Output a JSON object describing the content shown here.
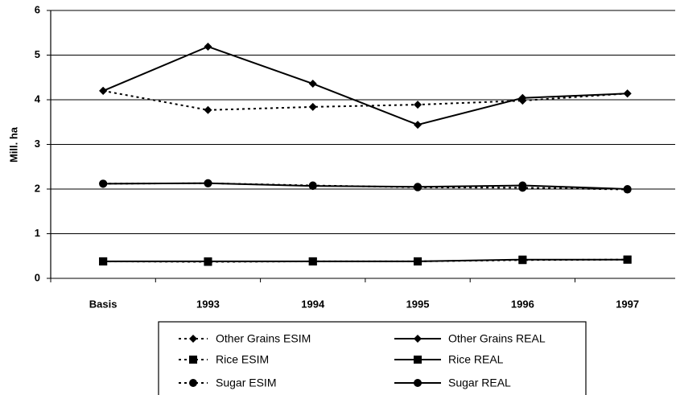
{
  "chart_data": {
    "type": "line",
    "y_label": "Mill. ha",
    "categories": [
      "Basis",
      "1993",
      "1994",
      "1995",
      "1996",
      "1997"
    ],
    "ylim": [
      0,
      6
    ],
    "yticks": [
      0,
      1,
      2,
      3,
      4,
      5,
      6
    ],
    "grid": true,
    "series": [
      {
        "name": "Other Grains ESIM",
        "color": "#000000",
        "marker": "diamond",
        "dash": "dotted",
        "values": [
          4.2,
          3.77,
          3.84,
          3.89,
          3.98,
          4.14
        ]
      },
      {
        "name": "Other Grains REAL",
        "color": "#000000",
        "marker": "diamond",
        "dash": "solid",
        "values": [
          4.2,
          5.19,
          4.36,
          3.44,
          4.04,
          4.14
        ]
      },
      {
        "name": "Rice ESIM",
        "color": "#000000",
        "marker": "square",
        "dash": "dotted",
        "values": [
          0.38,
          0.37,
          0.38,
          0.38,
          0.41,
          0.42
        ]
      },
      {
        "name": "Rice REAL",
        "color": "#000000",
        "marker": "square",
        "dash": "solid",
        "values": [
          0.38,
          0.38,
          0.38,
          0.38,
          0.42,
          0.42
        ]
      },
      {
        "name": "Sugar ESIM",
        "color": "#000000",
        "marker": "circle",
        "dash": "dotted",
        "values": [
          2.12,
          2.13,
          2.08,
          2.04,
          2.03,
          1.99
        ]
      },
      {
        "name": "Sugar REAL",
        "color": "#000000",
        "marker": "circle",
        "dash": "solid",
        "values": [
          2.12,
          2.13,
          2.07,
          2.05,
          2.08,
          2.0
        ]
      }
    ]
  }
}
